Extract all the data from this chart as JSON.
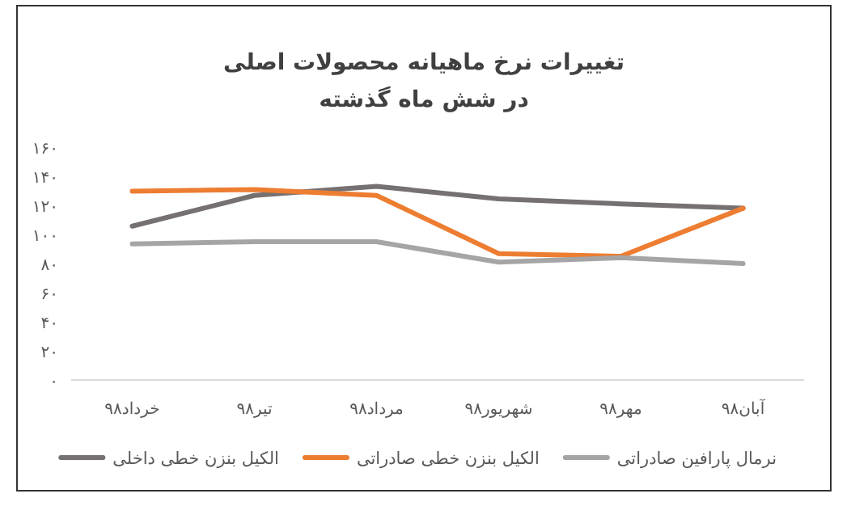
{
  "chart_data": {
    "type": "line",
    "title": "تغییرات نرخ ماهیانه محصولات اصلی",
    "subtitle": "در شش ماه گذشته",
    "categories": [
      "خرداد۹۸",
      "تیر۹۸",
      "مرداد۹۸",
      "شهریور۹۸",
      "مهر۹۸",
      "آبان۹۸"
    ],
    "series": [
      {
        "name": "نرمال پارافین صادراتی",
        "color": "#a5a5a5",
        "values": [
          93.5,
          95,
          95,
          81,
          84,
          80
        ]
      },
      {
        "name": "الکیل بنزن خطی صادراتی",
        "color": "#ed7d31",
        "values": [
          129.7,
          130.8,
          126.8,
          86.8,
          85,
          118
        ]
      },
      {
        "name": "الکیل بنزن خطی داخلی",
        "color": "#767171",
        "values": [
          105.7,
          126.8,
          133,
          124.5,
          121,
          118
        ]
      }
    ],
    "ylim": [
      0,
      160
    ],
    "yticks": [
      {
        "value": 0,
        "label": "۰"
      },
      {
        "value": 20,
        "label": "۲۰"
      },
      {
        "value": 40,
        "label": "۴۰"
      },
      {
        "value": 60,
        "label": "۶۰"
      },
      {
        "value": 80,
        "label": "۸۰"
      },
      {
        "value": 100,
        "label": "۱۰۰"
      },
      {
        "value": 120,
        "label": "۱۲۰"
      },
      {
        "value": 140,
        "label": "۱۴۰"
      },
      {
        "value": 160,
        "label": "۱۶۰"
      }
    ],
    "grid": false,
    "legend": "bottom",
    "marker": "none",
    "line_style": "solid"
  }
}
